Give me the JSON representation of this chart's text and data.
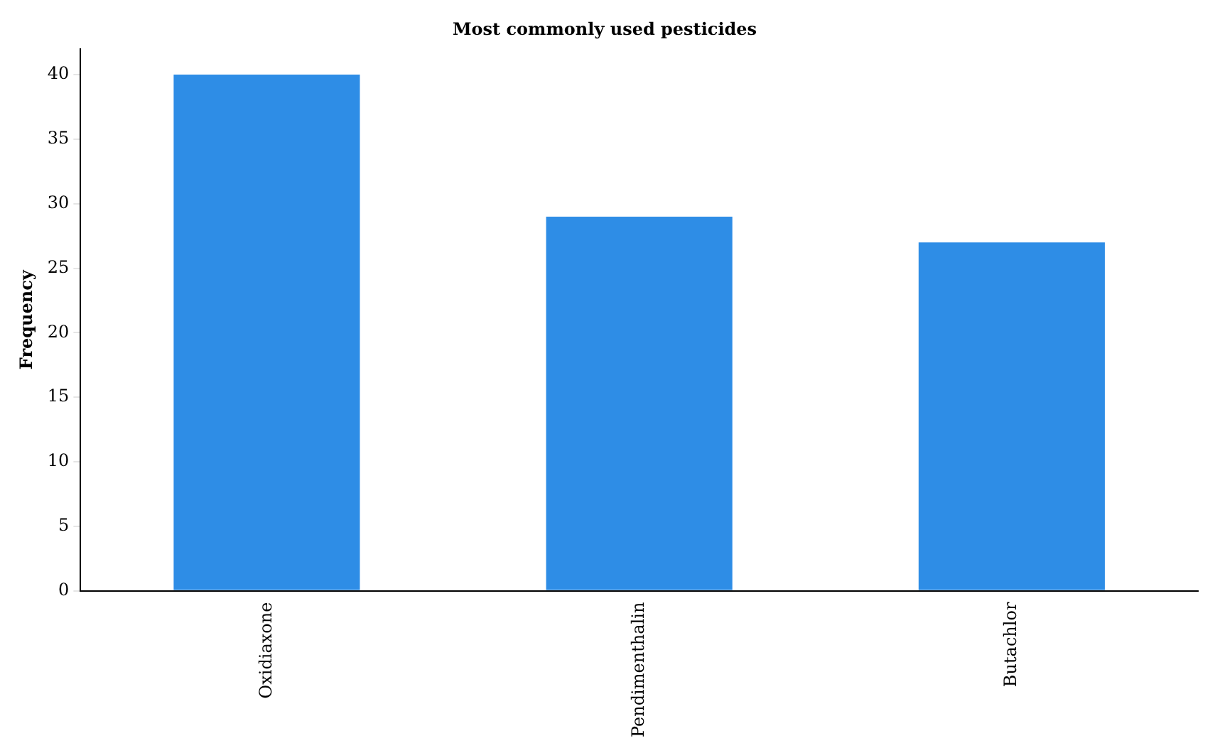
{
  "chart_data": {
    "type": "bar",
    "title": "Most commonly used pesticides",
    "ylabel": "Frequency",
    "categories": [
      "Oxidiaxone",
      "Pendimenthalin",
      "Butachlor"
    ],
    "values": [
      40,
      29,
      27
    ],
    "color": "#2e8de6",
    "ylim": [
      0,
      42
    ],
    "yticks": [
      0,
      5,
      10,
      15,
      20,
      25,
      30,
      35,
      40
    ],
    "grid": false,
    "legend": false
  }
}
